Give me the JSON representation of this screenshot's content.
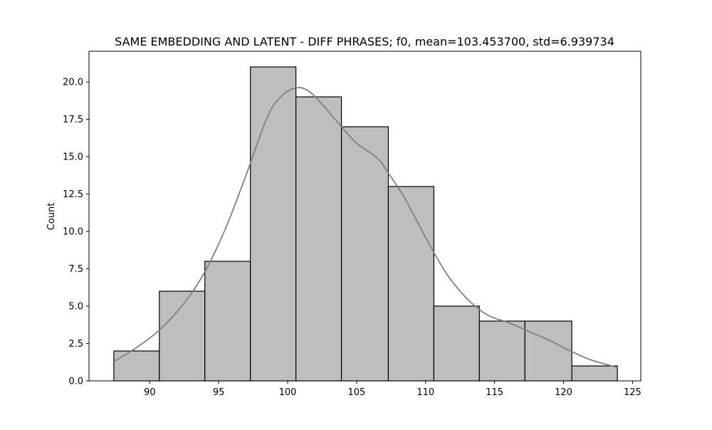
{
  "chart_data": {
    "type": "histogram",
    "title": "SAME EMBEDDING AND LATENT - DIFF PHRASES; f0, mean=103.453700, std=6.939734",
    "xlabel": "",
    "ylabel": "Count",
    "xlim": [
      85.6,
      125.6
    ],
    "ylim": [
      0,
      22.05
    ],
    "xticks": [
      90,
      95,
      100,
      105,
      110,
      115,
      120,
      125
    ],
    "xtick_labels": [
      "90",
      "95",
      "100",
      "105",
      "110",
      "115",
      "120",
      "125"
    ],
    "yticks": [
      0,
      2.5,
      5,
      7.5,
      10,
      12.5,
      15,
      17.5,
      20
    ],
    "ytick_labels": [
      "0.0",
      "2.5",
      "5.0",
      "7.5",
      "10.0",
      "12.5",
      "15.0",
      "17.5",
      "20.0"
    ],
    "bins": [
      {
        "x0": 87.4,
        "x1": 90.7,
        "count": 2
      },
      {
        "x0": 90.7,
        "x1": 94.0,
        "count": 6
      },
      {
        "x0": 94.0,
        "x1": 97.3,
        "count": 8
      },
      {
        "x0": 97.3,
        "x1": 100.6,
        "count": 21
      },
      {
        "x0": 100.6,
        "x1": 103.9,
        "count": 19
      },
      {
        "x0": 103.9,
        "x1": 107.3,
        "count": 17
      },
      {
        "x0": 107.3,
        "x1": 110.6,
        "count": 13
      },
      {
        "x0": 110.6,
        "x1": 113.9,
        "count": 5
      },
      {
        "x0": 113.9,
        "x1": 117.2,
        "count": 4
      },
      {
        "x0": 117.2,
        "x1": 120.6,
        "count": 4
      },
      {
        "x0": 120.6,
        "x1": 123.9,
        "count": 1
      }
    ],
    "kde": {
      "x": [
        87.4,
        89.0,
        90.7,
        92.5,
        94.0,
        95.5,
        97.0,
        98.5,
        99.5,
        100.6,
        101.5,
        102.5,
        103.9,
        105.0,
        106.5,
        107.3,
        108.5,
        110.0,
        111.5,
        113.0,
        114.5,
        116.0,
        117.5,
        119.0,
        120.5,
        122.0,
        123.9
      ],
      "y": [
        1.3,
        2.2,
        3.4,
        5.2,
        7.3,
        10.2,
        13.8,
        17.6,
        19.0,
        19.6,
        19.4,
        18.5,
        17.0,
        15.9,
        14.9,
        13.9,
        12.2,
        9.6,
        7.2,
        5.5,
        4.4,
        3.9,
        3.3,
        2.7,
        2.0,
        1.4,
        0.9
      ]
    },
    "colors": {
      "bar_fill": "#bebebe",
      "bar_edge": "#000000",
      "kde_line": "#808080"
    },
    "grid": false,
    "legend": "none"
  }
}
